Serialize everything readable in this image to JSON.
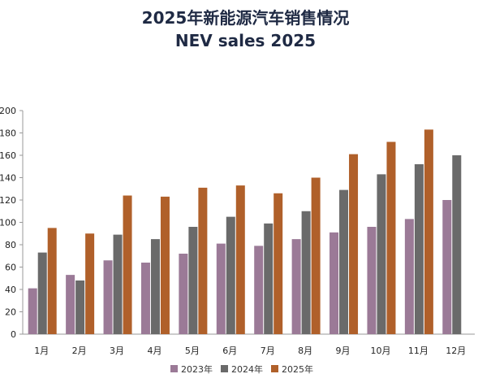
{
  "chart_data": {
    "type": "bar",
    "title": "2025年新能源汽车销售情况",
    "subtitle": "NEV sales 2025",
    "categories": [
      "1月",
      "2月",
      "3月",
      "4月",
      "5月",
      "6月",
      "7月",
      "8月",
      "9月",
      "10月",
      "11月",
      "12月"
    ],
    "series": [
      {
        "name": "2023年",
        "color": "#9b7a97",
        "values": [
          41,
          53,
          66,
          64,
          72,
          81,
          79,
          85,
          91,
          96,
          103,
          120
        ]
      },
      {
        "name": "2024年",
        "color": "#6a6a6a",
        "values": [
          73,
          48,
          89,
          85,
          96,
          105,
          99,
          110,
          129,
          143,
          152,
          160
        ]
      },
      {
        "name": "2025年",
        "color": "#b0602a",
        "values": [
          95,
          90,
          124,
          123,
          131,
          133,
          126,
          140,
          161,
          172,
          183,
          null
        ]
      }
    ],
    "ylim": [
      0,
      200
    ],
    "yticks": [
      0,
      20,
      40,
      60,
      80,
      100,
      120,
      140,
      160,
      180,
      200
    ],
    "xlabel": "",
    "ylabel": "",
    "grid": false,
    "legend_position": "bottom"
  }
}
